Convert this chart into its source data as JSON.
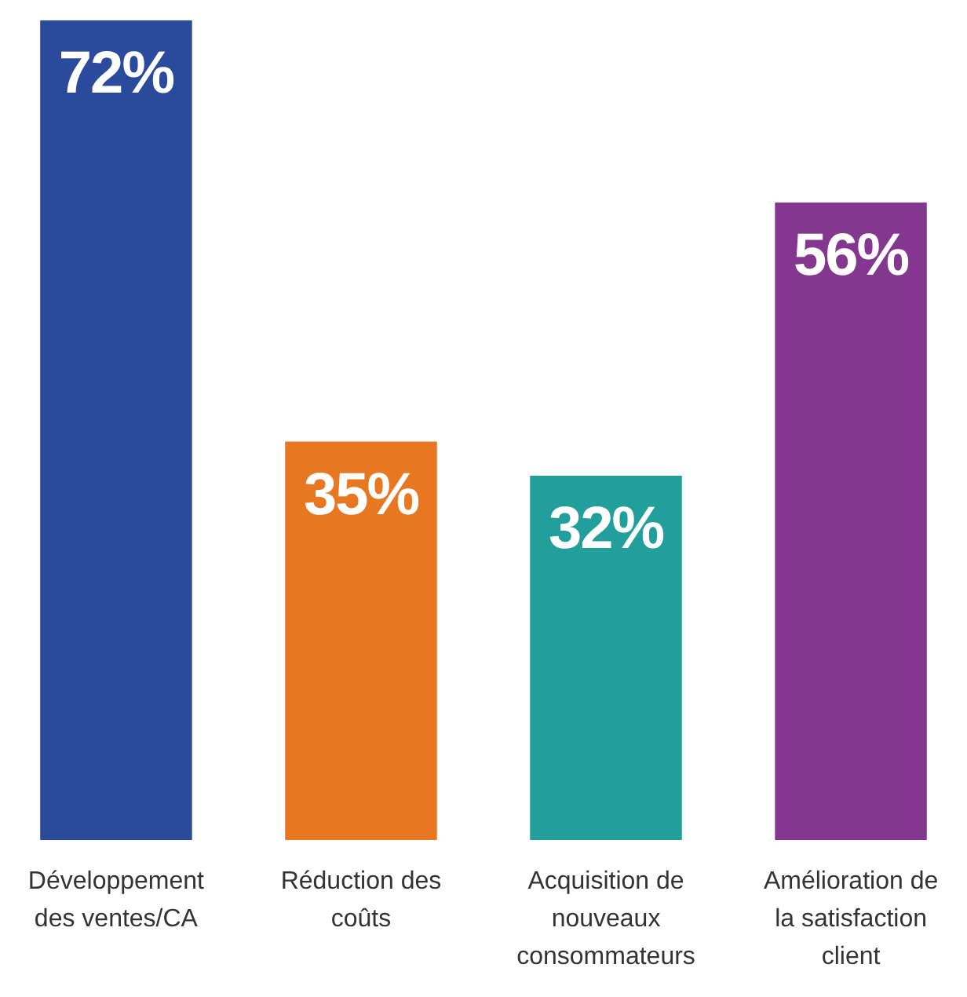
{
  "chart_data": {
    "type": "bar",
    "categories": [
      "Développement des ventes/CA",
      "Réduction des coûts",
      "Acquisition de nouveaux consommateurs",
      "Amélioration de la satisfaction client"
    ],
    "values": [
      72,
      35,
      32,
      56
    ],
    "value_labels": [
      "72%",
      "35%",
      "32%",
      "56%"
    ],
    "colors": [
      "#2b4a9c",
      "#e87722",
      "#239f9b",
      "#84378f"
    ]
  }
}
